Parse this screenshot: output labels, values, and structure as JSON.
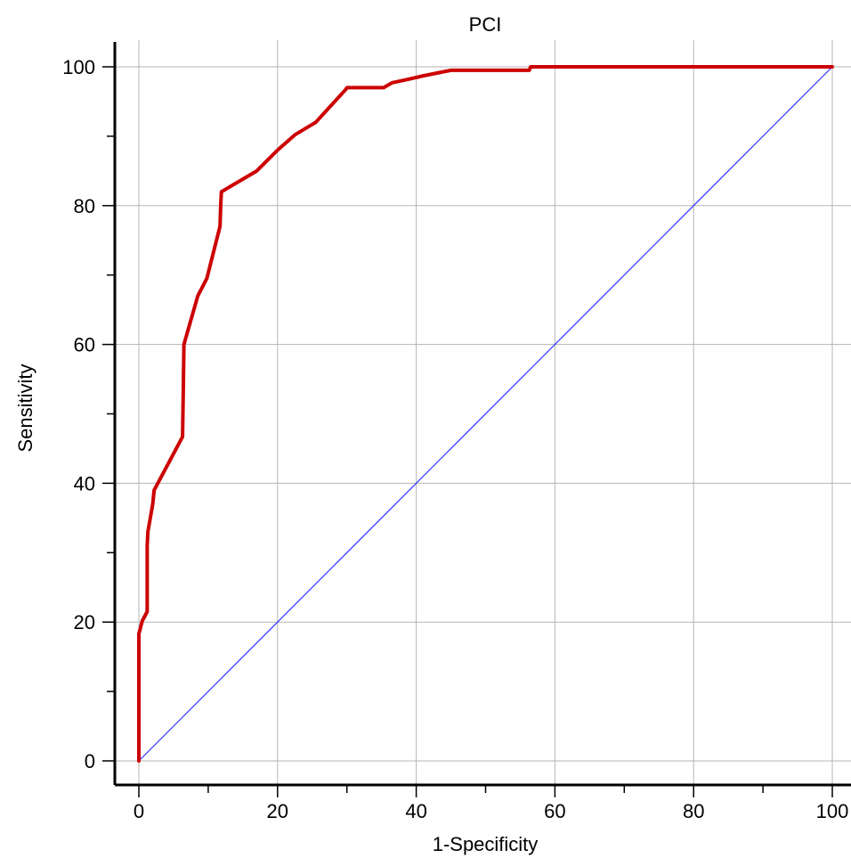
{
  "chart_data": {
    "type": "line",
    "title": "PCI",
    "xlabel": "1-Specificity",
    "ylabel": "Sensitivity",
    "xlim": [
      0,
      100
    ],
    "ylim": [
      0,
      100
    ],
    "x_ticks": [
      0,
      20,
      40,
      60,
      80,
      100
    ],
    "y_ticks": [
      0,
      20,
      40,
      60,
      80,
      100
    ],
    "x_minor_step": 10,
    "y_minor_step": 10,
    "grid": true,
    "series": [
      {
        "role": "roc-curve",
        "color": "#cc0000",
        "x": [
          0,
          0,
          0,
          0.5,
          1.2,
          1.2,
          1.3,
          2.0,
          2.2,
          6.3,
          6.4,
          6.5,
          8.5,
          9.8,
          11.7,
          11.8,
          11.9,
          17.0,
          20.0,
          22.5,
          25.5,
          29.8,
          30.0,
          35.3,
          36.5,
          38.8,
          41.0,
          45.0,
          56.3,
          56.5,
          100
        ],
        "y": [
          0,
          12.0,
          18.3,
          20.2,
          21.5,
          31.0,
          33.0,
          37.0,
          39.0,
          46.7,
          53.0,
          60.0,
          67.0,
          69.5,
          77.0,
          80.0,
          82.0,
          85.0,
          88.0,
          90.2,
          92.0,
          96.7,
          97.0,
          97.0,
          97.7,
          98.2,
          98.7,
          99.5,
          99.5,
          100,
          100
        ]
      },
      {
        "role": "reference-line",
        "color": "#3333ff",
        "x": [
          0,
          100
        ],
        "y": [
          0,
          100
        ]
      }
    ]
  }
}
